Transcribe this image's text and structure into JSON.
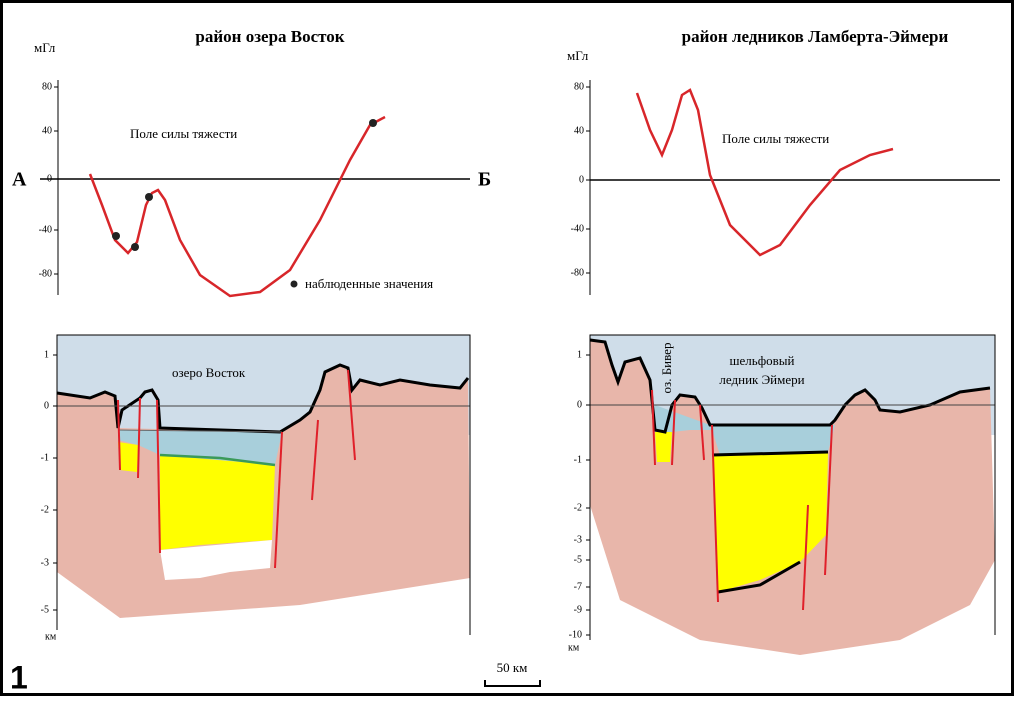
{
  "panels": [
    {
      "title": "район озера Восток",
      "gravity_unit": "мГл",
      "gravity_ticks": [
        80,
        40,
        0,
        -40,
        -80
      ],
      "gravity_label": "Поле силы тяжести",
      "legend": "наблюденные значения",
      "point_a": "А",
      "point_b": "Б",
      "lake_label": "озеро Восток",
      "depth_ticks": [
        1,
        0,
        -1,
        -2,
        -3,
        -5
      ],
      "depth_unit": "км"
    },
    {
      "title": "район ледников Ламберта-Эймери",
      "gravity_unit": "мГл",
      "gravity_ticks": [
        80,
        40,
        0,
        -40,
        -80
      ],
      "gravity_label": "Поле силы тяжести",
      "lake_label": "оз. Бивер",
      "shelf_label_lines": [
        "шельфовый",
        "ледник Эймери"
      ],
      "depth_ticks": [
        1,
        0,
        -1,
        -2,
        -3,
        -5,
        -7,
        -9,
        -10
      ],
      "depth_unit": "км"
    }
  ],
  "figure_number": "1",
  "scale_bar": "50 км"
}
